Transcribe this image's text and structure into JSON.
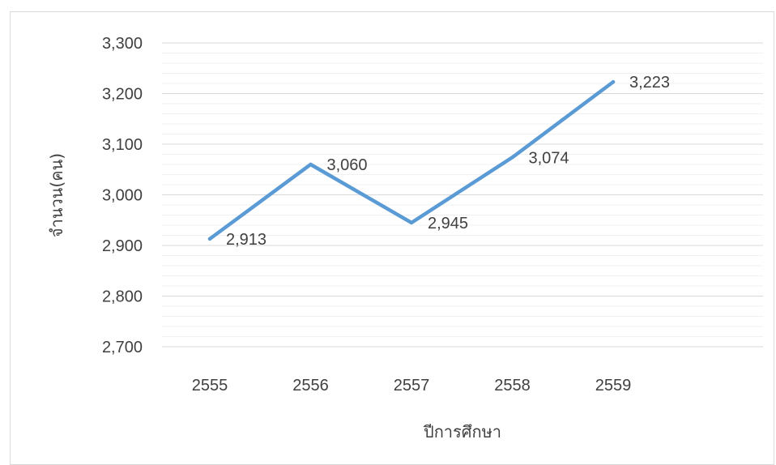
{
  "chart_data": {
    "type": "line",
    "title": "",
    "xlabel": "ปีการศึกษา",
    "ylabel": "จำนวน(คน)",
    "categories": [
      "2555",
      "2556",
      "2557",
      "2558",
      "2559"
    ],
    "series": [
      {
        "values": [
          2913,
          3060,
          2945,
          3074,
          3223
        ],
        "color": "#5b9bd5"
      }
    ],
    "data_labels": [
      "2,913",
      "3,060",
      "2,945",
      "3,074",
      "3,223"
    ],
    "ylim": [
      2700,
      3300
    ],
    "y_ticks": [
      2700,
      2800,
      2900,
      3000,
      3100,
      3200,
      3300
    ],
    "y_tick_labels": [
      "2,700",
      "2,800",
      "2,900",
      "3,000",
      "3,100",
      "3,200",
      "3,300"
    ],
    "grid": true,
    "minor_grid": true,
    "legend": "none"
  }
}
